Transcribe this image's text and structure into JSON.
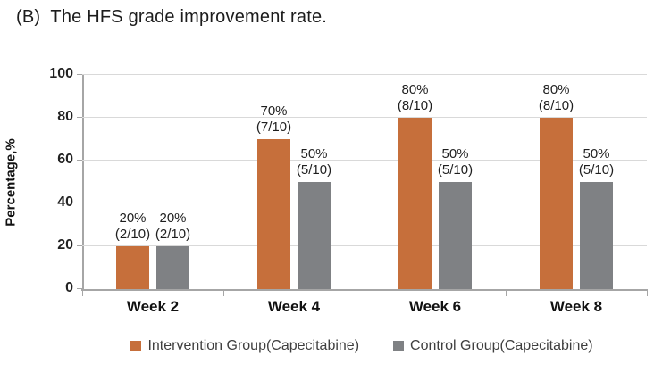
{
  "chart_data": {
    "type": "bar",
    "title": "(B)  The HFS grade improvement rate.",
    "categories": [
      "Week 2",
      "Week 4",
      "Week 6",
      "Week 8"
    ],
    "series": [
      {
        "name": "Intervention Group(Capecitabine)",
        "color": "#C66F3B",
        "values": [
          20,
          70,
          80,
          80
        ],
        "labels": [
          [
            "20%",
            "(2/10)"
          ],
          [
            "70%",
            "(7/10)"
          ],
          [
            "80%",
            "(8/10)"
          ],
          [
            "80%",
            "(8/10)"
          ]
        ]
      },
      {
        "name": "Control Group(Capecitabine)",
        "color": "#7F8184",
        "values": [
          20,
          50,
          50,
          50
        ],
        "labels": [
          [
            "20%",
            "(2/10)"
          ],
          [
            "50%",
            "(5/10)"
          ],
          [
            "50%",
            "(5/10)"
          ],
          [
            "50%",
            "(5/10)"
          ]
        ]
      }
    ],
    "ylabel": "Percentage,%",
    "xlabel": "",
    "ylim": [
      0,
      100
    ],
    "yticks": [
      0,
      20,
      40,
      60,
      80,
      100
    ],
    "grid": true,
    "legend_position": "bottom"
  },
  "colors": {
    "gridline": "#D9D9D9",
    "axis": "#A6A6A6",
    "tick": "#A6A6A6"
  }
}
